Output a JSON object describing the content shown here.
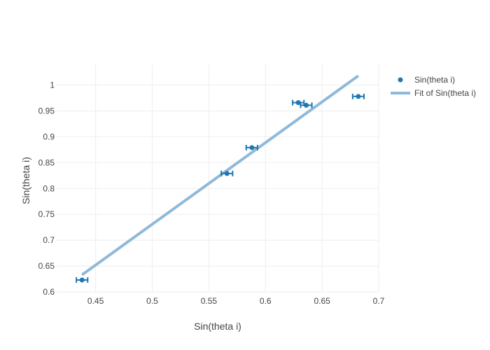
{
  "chart_data": {
    "type": "scatter",
    "xlabel": "Sin(theta i)",
    "ylabel": "Sin(theta i)",
    "xlim": [
      0.415,
      0.7
    ],
    "ylim": [
      0.6,
      1.04
    ],
    "x_ticks": [
      0.45,
      0.5,
      0.55,
      0.6,
      0.65,
      0.7
    ],
    "x_tick_labels": [
      "0.45",
      "0.5",
      "0.55",
      "0.6",
      "0.65",
      "0.7"
    ],
    "y_ticks": [
      0.6,
      0.65,
      0.7,
      0.75,
      0.8,
      0.85,
      0.9,
      0.95,
      1
    ],
    "y_tick_labels": [
      "0.6",
      "0.65",
      "0.7",
      "0.75",
      "0.8",
      "0.85",
      "0.9",
      "0.95",
      "1"
    ],
    "grid": true,
    "legend_position": "top-right",
    "series": [
      {
        "name": "Sin(theta i)",
        "mode": "markers",
        "color": "#1f77b4",
        "points": [
          {
            "x": 0.438,
            "y": 0.623,
            "xerr": 0.005
          },
          {
            "x": 0.566,
            "y": 0.829,
            "xerr": 0.005
          },
          {
            "x": 0.588,
            "y": 0.879,
            "xerr": 0.005
          },
          {
            "x": 0.629,
            "y": 0.966,
            "xerr": 0.005
          },
          {
            "x": 0.636,
            "y": 0.961,
            "xerr": 0.005
          },
          {
            "x": 0.682,
            "y": 0.978,
            "xerr": 0.005
          }
        ]
      },
      {
        "name": "Fit of Sin(theta i)",
        "mode": "line",
        "color": "#8fb9d9",
        "points": [
          {
            "x": 0.438,
            "y": 0.633
          },
          {
            "x": 0.682,
            "y": 1.018
          }
        ]
      }
    ]
  }
}
